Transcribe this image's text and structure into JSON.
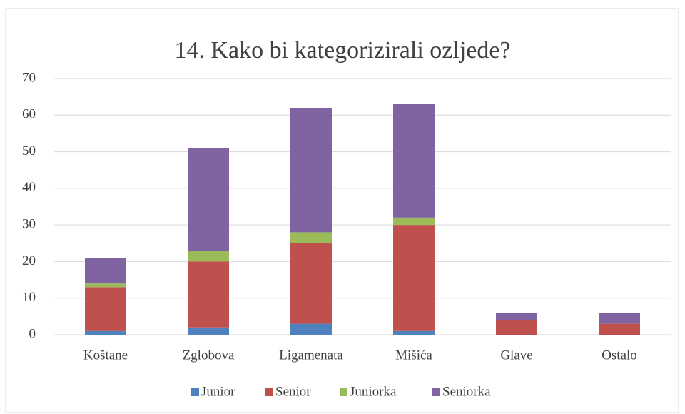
{
  "chart_data": {
    "type": "stacked_bar",
    "title": "14. Kako bi kategorizirali ozljede?",
    "categories": [
      "Koštane",
      "Zglobova",
      "Ligamenata",
      "Mišića",
      "Glave",
      "Ostalo"
    ],
    "series": [
      {
        "name": "Junior",
        "color": "#4f81bd",
        "values": [
          1,
          2,
          3,
          1,
          0,
          0
        ]
      },
      {
        "name": "Senior",
        "color": "#c0504d",
        "values": [
          12,
          18,
          22,
          29,
          4,
          3
        ]
      },
      {
        "name": "Juniorka",
        "color": "#9bbb59",
        "values": [
          1,
          3,
          3,
          2,
          0,
          0
        ]
      },
      {
        "name": "Seniorka",
        "color": "#8064a2",
        "values": [
          7,
          28,
          34,
          31,
          2,
          3
        ]
      }
    ],
    "ylim": [
      0,
      70
    ],
    "yticks": [
      0,
      10,
      20,
      30,
      40,
      50,
      60,
      70
    ],
    "grid": true,
    "legend": "bottom"
  }
}
